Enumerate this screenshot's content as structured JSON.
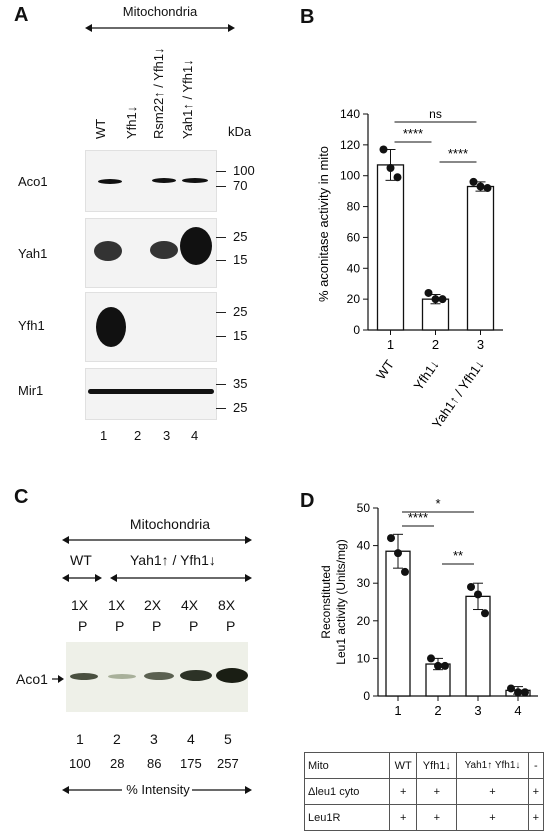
{
  "panelA": {
    "label": "A",
    "header": "Mitochondria",
    "lanes": [
      "WT",
      "Yfh1↓",
      "Rsm22↑ / Yfh1↓",
      "Yah1↑ / Yfh1↓"
    ],
    "kda": "kDa",
    "blots": [
      {
        "name": "Aco1",
        "markers": [
          "100",
          "70"
        ]
      },
      {
        "name": "Yah1",
        "markers": [
          "25",
          "15"
        ]
      },
      {
        "name": "Yfh1",
        "markers": [
          "25",
          "15"
        ]
      },
      {
        "name": "Mir1",
        "markers": [
          "35",
          "25"
        ]
      }
    ],
    "lane_numbers": [
      "1",
      "2",
      "3",
      "4"
    ]
  },
  "panelB": {
    "label": "B",
    "chart_data": {
      "type": "bar",
      "ylabel": "% aconitase activity in mito",
      "ylim": [
        0,
        140
      ],
      "yticks": [
        "0",
        "20",
        "40",
        "60",
        "80",
        "100",
        "120",
        "140"
      ],
      "categories": [
        "1",
        "2",
        "3"
      ],
      "category_names": [
        "WT",
        "Yfh1↓",
        "Yah1↑ / Yfh1↓"
      ],
      "values": [
        107,
        20,
        93
      ],
      "errors": [
        10,
        3,
        3
      ],
      "points": [
        [
          117,
          105,
          99
        ],
        [
          24,
          20,
          20
        ],
        [
          96,
          93,
          92
        ]
      ],
      "significance": [
        {
          "from": 1,
          "to": 2,
          "label": "****"
        },
        {
          "from": 1,
          "to": 3,
          "label": "ns"
        },
        {
          "from": 2,
          "to": 3,
          "label": "****"
        }
      ]
    }
  },
  "panelC": {
    "label": "C",
    "header": "Mitochondria",
    "group1": "WT",
    "group2": "Yah1↑ / Yfh1↓",
    "amounts": [
      "1X",
      "1X",
      "2X",
      "4X",
      "8X"
    ],
    "fraction": [
      "P",
      "P",
      "P",
      "P",
      "P"
    ],
    "blot_label": "Aco1",
    "lane_numbers": [
      "1",
      "2",
      "3",
      "4",
      "5"
    ],
    "intensity": [
      100,
      28,
      86,
      175,
      257
    ],
    "intensity_label": "% Intensity"
  },
  "panelD": {
    "label": "D",
    "chart_data": {
      "type": "bar",
      "ylabel_line1": "Reconstituted",
      "ylabel_line2": "Leu1 activity (Units/mg)",
      "ylim": [
        0,
        50
      ],
      "yticks": [
        "0",
        "10",
        "20",
        "30",
        "40",
        "50"
      ],
      "categories": [
        "1",
        "2",
        "3",
        "4"
      ],
      "values": [
        38.5,
        8.5,
        26.5,
        1.5
      ],
      "errors": [
        4.5,
        1.5,
        3.5,
        1
      ],
      "points": [
        [
          42,
          38,
          33
        ],
        [
          10,
          8,
          8
        ],
        [
          29,
          27,
          22
        ],
        [
          2,
          1,
          1
        ]
      ],
      "significance": [
        {
          "from": 1,
          "to": 2,
          "label": "****"
        },
        {
          "from": 1,
          "to": 3,
          "label": "*"
        },
        {
          "from": 2,
          "to": 3,
          "label": "**"
        }
      ]
    },
    "table": {
      "rows": [
        {
          "label": "Mito",
          "cells": [
            "WT",
            "Yfh1↓",
            "Yah1↑ Yfh1↓",
            "-"
          ]
        },
        {
          "label": "Δleu1 cyto",
          "cells": [
            "+",
            "+",
            "+",
            "+"
          ]
        },
        {
          "label": "Leu1R",
          "cells": [
            "+",
            "+",
            "+",
            "+"
          ]
        }
      ]
    }
  }
}
